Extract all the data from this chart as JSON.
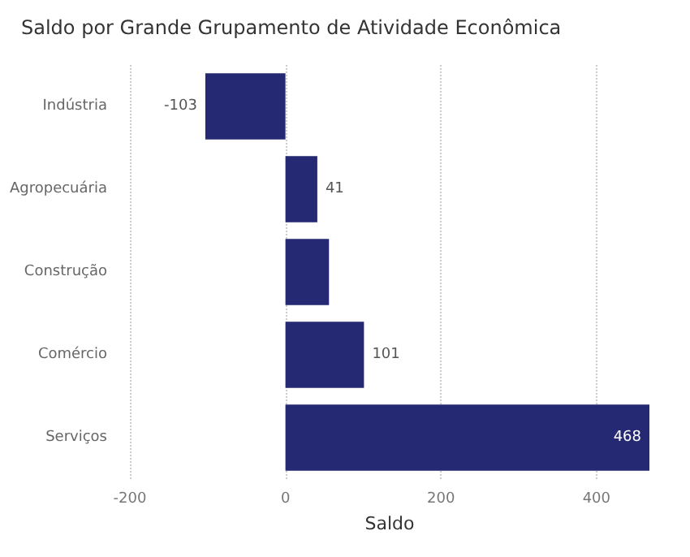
{
  "chart_data": {
    "type": "bar",
    "orientation": "horizontal",
    "title": "Saldo por Grande Grupamento de Atividade Econômica",
    "xlabel": "Saldo",
    "categories": [
      "Indústria",
      "Agropecuária",
      "Construção",
      "Comércio",
      "Serviços"
    ],
    "values": [
      -103,
      41,
      56,
      101,
      468
    ],
    "color": "#252872",
    "value_labels": [
      "-103",
      "41",
      null,
      "101",
      "468"
    ],
    "xlim": [
      -200,
      468
    ],
    "xticks": [
      -200,
      0,
      200,
      400
    ],
    "grid": "x"
  }
}
